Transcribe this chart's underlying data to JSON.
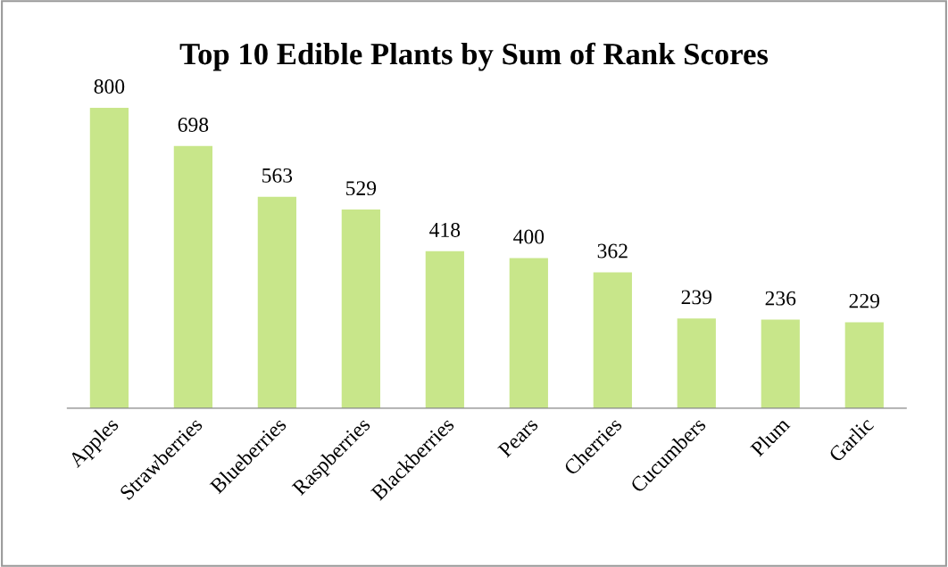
{
  "chart_data": {
    "type": "bar",
    "title": "Top 10 Edible Plants by Sum of Rank Scores",
    "categories": [
      "Apples",
      "Strawberries",
      "Blueberries",
      "Raspberries",
      "Blackberries",
      "Pears",
      "Cherries",
      "Cucumbers",
      "Plum",
      "Garlic"
    ],
    "values": [
      800,
      698,
      563,
      529,
      418,
      400,
      362,
      239,
      236,
      229
    ],
    "color": "#c8e68a",
    "data_labels": true,
    "grid": false,
    "legend": false
  }
}
